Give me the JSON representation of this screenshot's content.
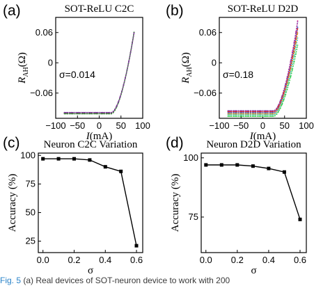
{
  "caption": {
    "figure_label": "Fig. 5",
    "text": "(a) Real devices of SOT-neuron device to work with 200"
  },
  "chart_data": [
    {
      "panel": "(a)",
      "type": "line",
      "title": "SOT-ReLU C2C",
      "xlabel": "I(mA)",
      "ylabel_main": "R",
      "ylabel_sub": "AH",
      "ylabel_unit": "(Ω)",
      "xlim": [
        -100,
        100
      ],
      "ylim": [
        -0.11,
        0.09
      ],
      "xticks": [
        -100,
        -50,
        0,
        50,
        100
      ],
      "xtick_labels": [
        "−100",
        "−50",
        "0",
        "50",
        "100"
      ],
      "yticks": [
        -0.06,
        0,
        0.06
      ],
      "ytick_labels": [
        "−0.06",
        "0",
        "0.06"
      ],
      "annotation": "σ=0.014",
      "curve_model": {
        "x_range": [
          -80,
          80
        ],
        "baseline": -0.1,
        "knee": 28,
        "amplitude": 0.16,
        "knee_end": 80
      },
      "series": [
        {
          "color": "#1f2a6b",
          "offset": 0.0,
          "scale": 1.0
        },
        {
          "color": "#d62728",
          "offset": 0.001,
          "scale": 0.99
        },
        {
          "color": "#3a8a3a",
          "offset": -0.001,
          "scale": 1.01
        },
        {
          "color": "#7a3aa0",
          "offset": 0.0015,
          "scale": 0.985
        }
      ]
    },
    {
      "panel": "(b)",
      "type": "line",
      "title": "SOT-ReLU D2D",
      "xlabel": "I(mA)",
      "ylabel_main": "R",
      "ylabel_sub": "AH",
      "ylabel_unit": "(Ω)",
      "xlim": [
        -100,
        100
      ],
      "ylim": [
        -0.11,
        0.09
      ],
      "xticks": [
        -100,
        -50,
        0,
        50,
        100
      ],
      "xtick_labels": [
        "−100",
        "−50",
        "0",
        "50",
        "100"
      ],
      "yticks": [
        -0.06,
        0,
        0.06
      ],
      "ytick_labels": [
        "−0.06",
        "0",
        "0.06"
      ],
      "annotation": "σ=0.18",
      "curve_model": {
        "x_range": [
          -80,
          80
        ],
        "baseline": -0.1,
        "knee": 25,
        "amplitude": 0.16,
        "knee_end": 80
      },
      "series": [
        {
          "color": "#2ecc40",
          "offset": -0.006,
          "scale": 0.88
        },
        {
          "color": "#39c0c0",
          "offset": -0.003,
          "scale": 0.95
        },
        {
          "color": "#e6a21a",
          "offset": -0.001,
          "scale": 1.0
        },
        {
          "color": "#3a6fd8",
          "offset": 0.001,
          "scale": 1.06
        },
        {
          "color": "#e0409c",
          "offset": 0.004,
          "scale": 1.12
        },
        {
          "color": "#8e44ad",
          "offset": 0.005,
          "scale": 1.1
        },
        {
          "color": "#d62728",
          "offset": 0.003,
          "scale": 1.03
        }
      ]
    },
    {
      "panel": "(c)",
      "type": "line",
      "title": "Neuron C2C Variation",
      "xlabel": "σ",
      "ylabel": "Accuracy (%)",
      "xlim": [
        -0.03,
        0.64
      ],
      "ylim": [
        15,
        102
      ],
      "xticks": [
        0.0,
        0.2,
        0.4,
        0.6
      ],
      "xtick_labels": [
        "0.0",
        "0.2",
        "0.4",
        "0.6"
      ],
      "yticks": [
        25,
        50,
        75,
        100
      ],
      "ytick_labels": [
        "25",
        "50",
        "75",
        "100"
      ],
      "x": [
        0.0,
        0.1,
        0.2,
        0.3,
        0.4,
        0.5,
        0.6
      ],
      "values": [
        97,
        97,
        97,
        96,
        90,
        86,
        21
      ]
    },
    {
      "panel": "(d)",
      "type": "line",
      "title": "Neuron D2D Variation",
      "xlabel": "σ",
      "ylabel": "Accuracy (%)",
      "xlim": [
        -0.03,
        0.64
      ],
      "ylim": [
        60,
        102
      ],
      "xticks": [
        0.0,
        0.2,
        0.4,
        0.6
      ],
      "xtick_labels": [
        "0.0",
        "0.2",
        "0.4",
        "0.6"
      ],
      "yticks": [
        75,
        100
      ],
      "ytick_labels": [
        "75",
        "100"
      ],
      "x": [
        0.0,
        0.1,
        0.2,
        0.3,
        0.4,
        0.5,
        0.6
      ],
      "values": [
        97,
        97,
        97,
        96.5,
        95.5,
        94,
        74
      ]
    }
  ]
}
